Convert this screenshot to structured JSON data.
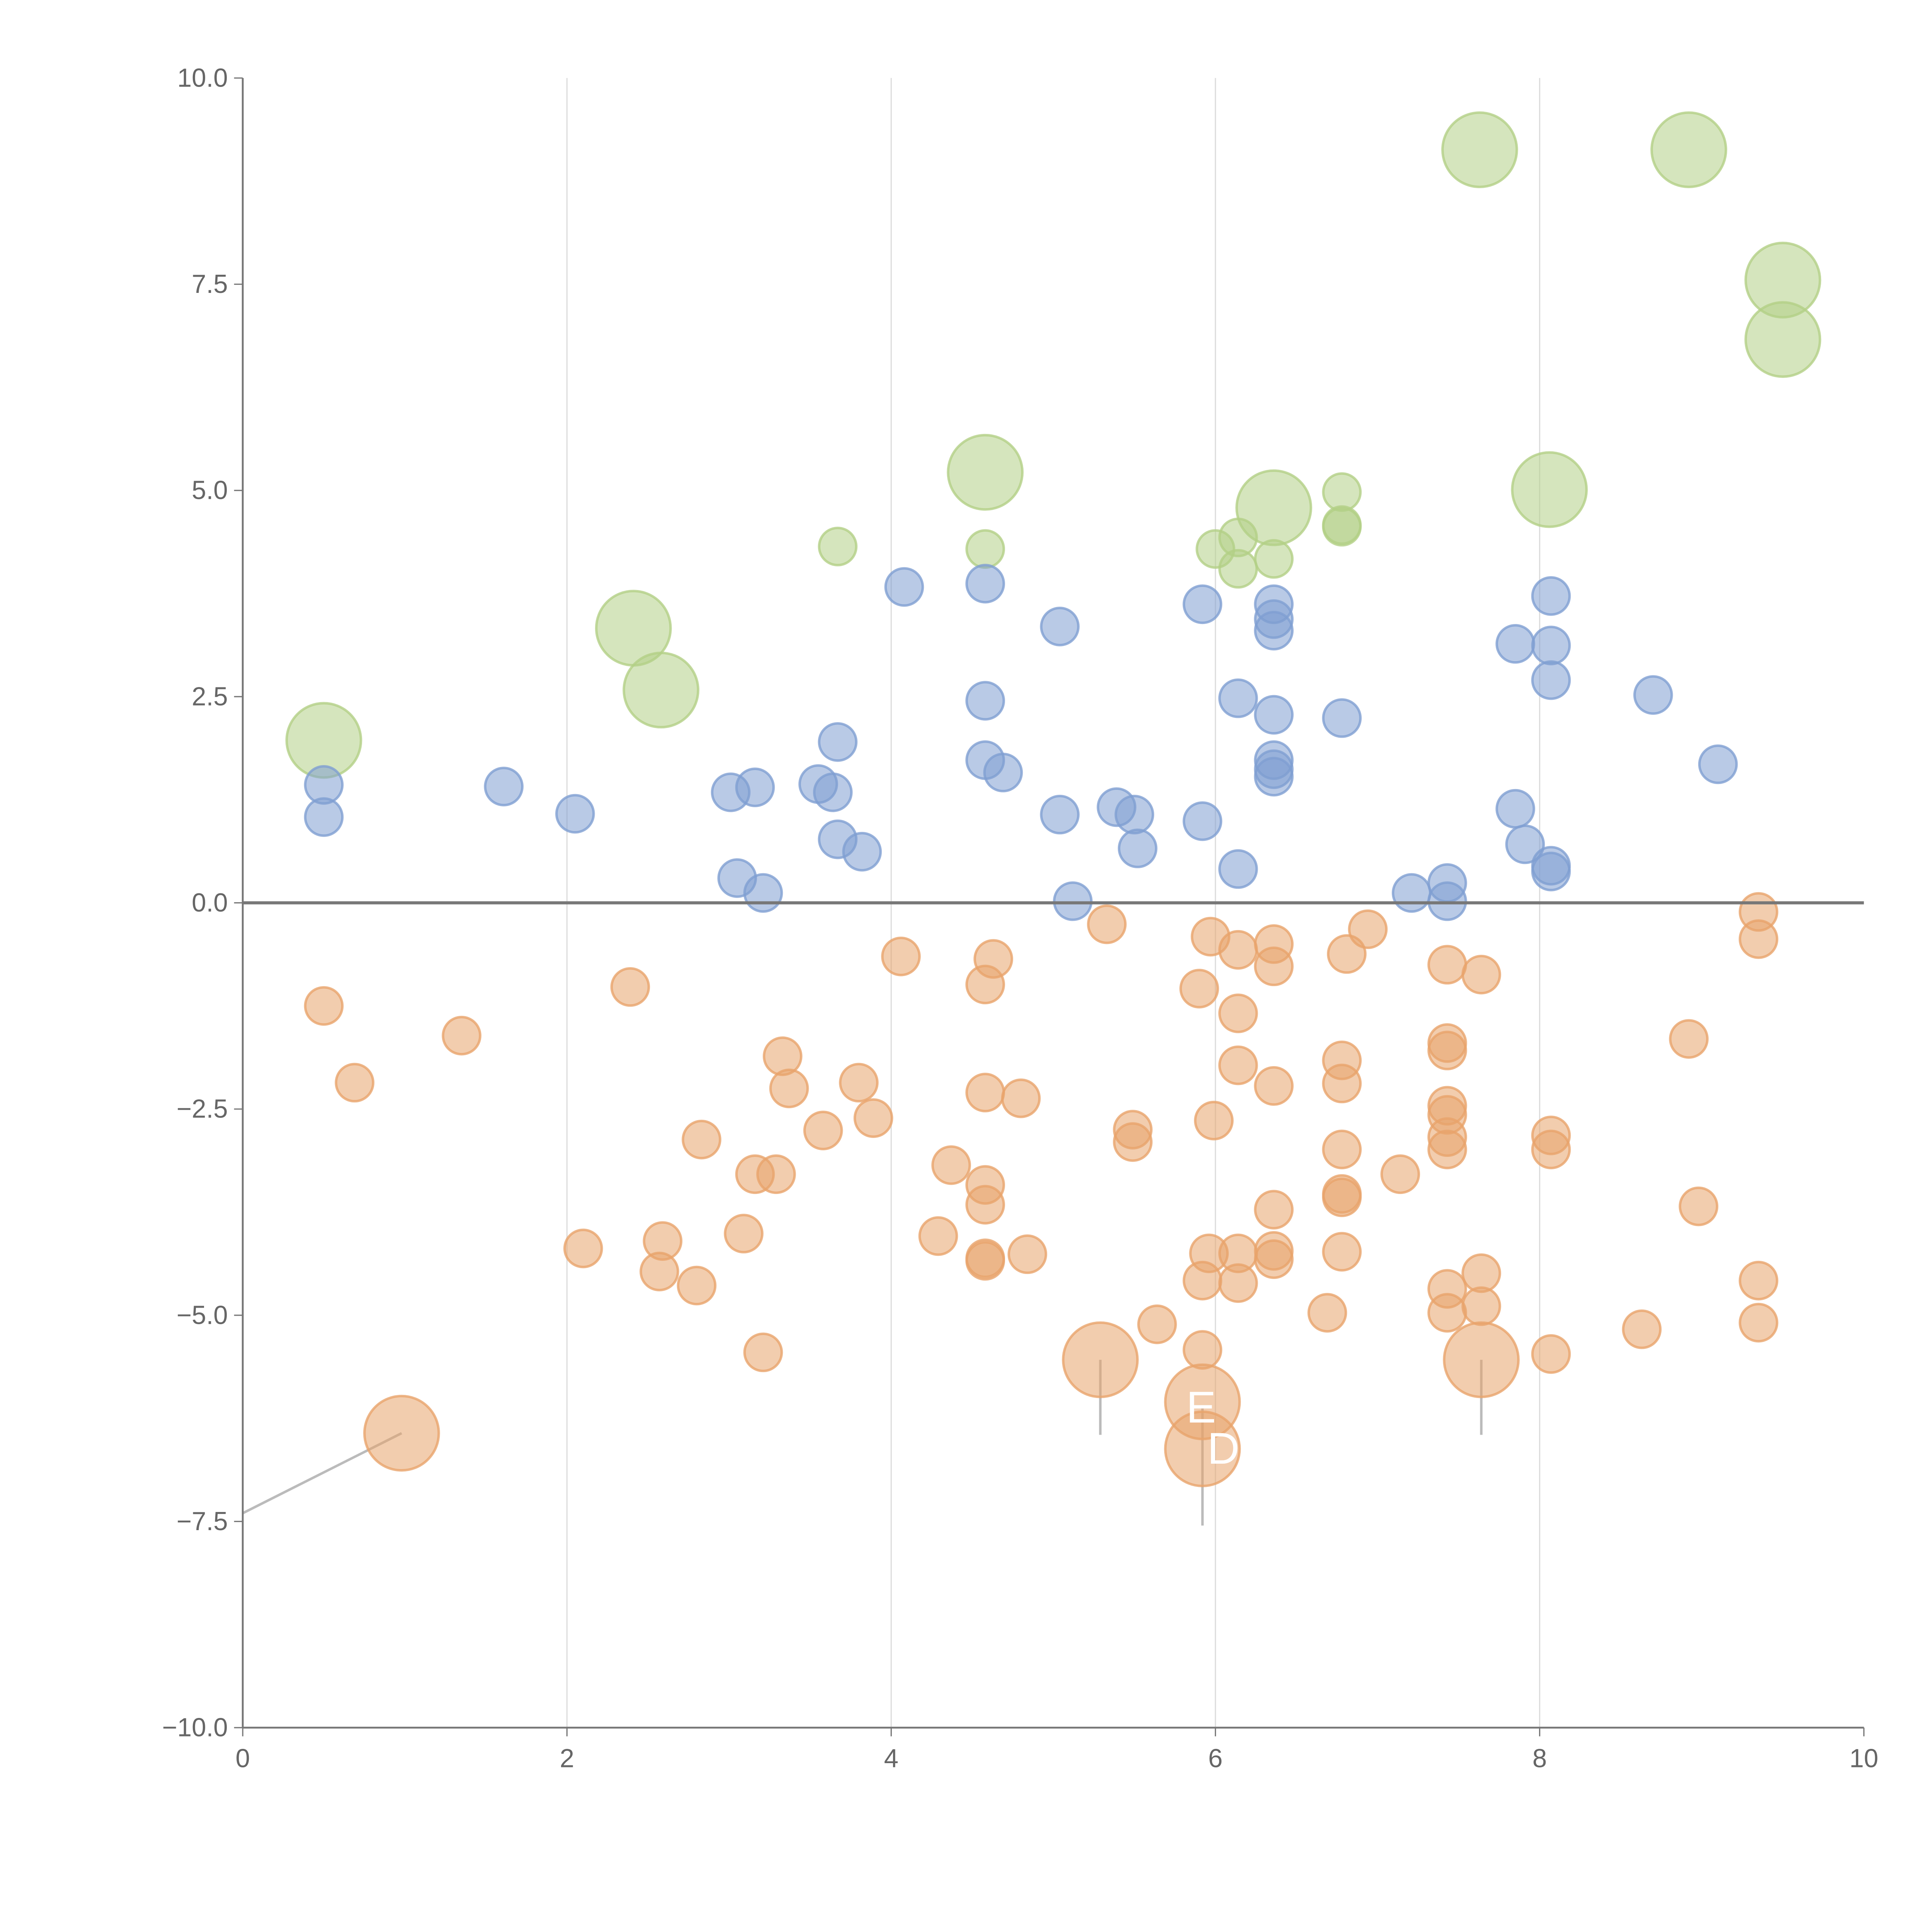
{
  "chart_data": {
    "type": "scatter",
    "title": "",
    "xlabel": "",
    "ylabel": "",
    "xlim": [
      0,
      10
    ],
    "ylim": [
      -10,
      10
    ],
    "xticks": [
      "0",
      "2",
      "4",
      "6",
      "8",
      "10"
    ],
    "yticks": [
      "−10.0",
      "−7.5",
      "−5.0",
      "−2.5",
      "0.0",
      "2.5",
      "5.0",
      "7.5",
      "10.0"
    ],
    "grid": "vertical",
    "series": [
      {
        "name": "green",
        "color": "#b3cf86",
        "points": [
          [
            7.63,
            9.13,
            4
          ],
          [
            8.92,
            9.13,
            4
          ],
          [
            9.5,
            7.55,
            4
          ],
          [
            9.5,
            6.83,
            4
          ],
          [
            4.58,
            5.22,
            4
          ],
          [
            6.36,
            4.79,
            4
          ],
          [
            8.06,
            5.01,
            4
          ],
          [
            2.41,
            3.33,
            4
          ],
          [
            2.58,
            2.58,
            4
          ],
          [
            0.5,
            1.97,
            4
          ],
          [
            3.67,
            4.32,
            1
          ],
          [
            4.58,
            4.29,
            1
          ],
          [
            6.0,
            4.29,
            1
          ],
          [
            6.14,
            4.43,
            1
          ],
          [
            6.14,
            4.05,
            1
          ],
          [
            6.36,
            4.17,
            1
          ],
          [
            6.78,
            4.98,
            1
          ],
          [
            6.78,
            4.58,
            1
          ],
          [
            6.78,
            4.56,
            1
          ]
        ]
      },
      {
        "name": "blue",
        "color": "#7f9fd2",
        "points": [
          [
            0.5,
            1.43,
            1
          ],
          [
            0.5,
            1.04,
            1
          ],
          [
            1.61,
            1.41,
            1
          ],
          [
            2.05,
            1.08,
            1
          ],
          [
            3.01,
            1.34,
            1
          ],
          [
            3.16,
            1.4,
            1
          ],
          [
            3.05,
            0.3,
            1
          ],
          [
            3.21,
            0.12,
            1
          ],
          [
            3.55,
            1.44,
            1
          ],
          [
            3.64,
            1.34,
            1
          ],
          [
            3.67,
            1.95,
            1
          ],
          [
            3.67,
            0.77,
            1
          ],
          [
            3.82,
            0.62,
            1
          ],
          [
            4.08,
            3.83,
            1
          ],
          [
            4.58,
            3.87,
            1
          ],
          [
            4.58,
            2.45,
            1
          ],
          [
            4.58,
            1.73,
            1
          ],
          [
            4.69,
            1.58,
            1
          ],
          [
            5.04,
            3.35,
            1
          ],
          [
            5.04,
            1.07,
            1
          ],
          [
            5.12,
            0.02,
            1
          ],
          [
            5.39,
            1.16,
            1
          ],
          [
            5.5,
            1.07,
            1
          ],
          [
            5.52,
            0.66,
            1
          ],
          [
            5.92,
            3.62,
            1
          ],
          [
            5.92,
            0.99,
            1
          ],
          [
            6.14,
            2.48,
            1
          ],
          [
            6.14,
            0.41,
            1
          ],
          [
            6.36,
            3.62,
            1
          ],
          [
            6.36,
            3.44,
            1
          ],
          [
            6.36,
            3.3,
            1
          ],
          [
            6.36,
            2.28,
            1
          ],
          [
            6.36,
            1.73,
            1
          ],
          [
            6.36,
            1.62,
            1
          ],
          [
            6.36,
            1.53,
            1
          ],
          [
            6.78,
            2.24,
            1
          ],
          [
            7.21,
            0.12,
            1
          ],
          [
            7.43,
            0.24,
            1
          ],
          [
            7.43,
            0.02,
            1
          ],
          [
            7.85,
            3.14,
            1
          ],
          [
            7.85,
            1.14,
            1
          ],
          [
            7.91,
            0.71,
            1
          ],
          [
            8.07,
            3.72,
            1
          ],
          [
            8.07,
            3.12,
            1
          ],
          [
            8.07,
            2.7,
            1
          ],
          [
            8.07,
            0.45,
            1
          ],
          [
            8.07,
            0.38,
            1
          ],
          [
            8.7,
            2.52,
            1
          ],
          [
            9.1,
            1.68,
            1
          ]
        ]
      },
      {
        "name": "orange",
        "color": "#e8a46c",
        "points": [
          [
            0.98,
            -6.43,
            4
          ],
          [
            5.29,
            -5.54,
            4
          ],
          [
            5.92,
            -6.05,
            4
          ],
          [
            5.92,
            -6.62,
            4
          ],
          [
            7.64,
            -5.54,
            4
          ],
          [
            0.5,
            -1.25,
            1
          ],
          [
            0.69,
            -2.18,
            1
          ],
          [
            1.35,
            -1.61,
            1
          ],
          [
            2.39,
            -1.02,
            1
          ],
          [
            2.1,
            -4.19,
            1
          ],
          [
            2.57,
            -4.47,
            1
          ],
          [
            2.59,
            -4.1,
            1
          ],
          [
            2.83,
            -2.87,
            1
          ],
          [
            2.8,
            -4.64,
            1
          ],
          [
            3.09,
            -4.01,
            1
          ],
          [
            3.16,
            -3.29,
            1
          ],
          [
            3.29,
            -3.29,
            1
          ],
          [
            3.33,
            -1.86,
            1
          ],
          [
            3.37,
            -2.25,
            1
          ],
          [
            3.21,
            -5.45,
            1
          ],
          [
            3.58,
            -2.76,
            1
          ],
          [
            3.8,
            -2.18,
            1
          ],
          [
            3.89,
            -2.61,
            1
          ],
          [
            4.06,
            -0.65,
            1
          ],
          [
            4.29,
            -4.04,
            1
          ],
          [
            4.37,
            -3.18,
            1
          ],
          [
            4.58,
            -0.99,
            1
          ],
          [
            4.63,
            -0.68,
            1
          ],
          [
            4.58,
            -2.3,
            1
          ],
          [
            4.8,
            -2.37,
            1
          ],
          [
            4.58,
            -3.42,
            1
          ],
          [
            4.58,
            -3.66,
            1
          ],
          [
            4.58,
            -4.31,
            1
          ],
          [
            4.58,
            -4.34,
            1
          ],
          [
            4.84,
            -4.26,
            1
          ],
          [
            5.33,
            -0.26,
            1
          ],
          [
            5.49,
            -2.75,
            1
          ],
          [
            5.49,
            -2.9,
            1
          ],
          [
            5.64,
            -5.11,
            1
          ],
          [
            5.97,
            -0.41,
            1
          ],
          [
            5.9,
            -1.04,
            1
          ],
          [
            5.99,
            -2.64,
            1
          ],
          [
            6.14,
            -0.57,
            1
          ],
          [
            6.14,
            -1.34,
            1
          ],
          [
            6.14,
            -1.97,
            1
          ],
          [
            6.36,
            -0.5,
            1
          ],
          [
            6.36,
            -0.77,
            1
          ],
          [
            6.36,
            -2.22,
            1
          ],
          [
            5.96,
            -4.25,
            1
          ],
          [
            6.14,
            -4.25,
            1
          ],
          [
            5.92,
            -4.58,
            1
          ],
          [
            6.14,
            -4.61,
            1
          ],
          [
            5.92,
            -5.42,
            1
          ],
          [
            6.36,
            -3.72,
            1
          ],
          [
            6.36,
            -4.22,
            1
          ],
          [
            6.36,
            -4.32,
            1
          ],
          [
            6.81,
            -0.62,
            1
          ],
          [
            6.94,
            -0.32,
            1
          ],
          [
            6.78,
            -1.91,
            1
          ],
          [
            6.78,
            -2.19,
            1
          ],
          [
            6.78,
            -2.99,
            1
          ],
          [
            6.78,
            -3.53,
            1
          ],
          [
            6.78,
            -3.57,
            1
          ],
          [
            6.78,
            -4.23,
            1
          ],
          [
            6.69,
            -4.97,
            1
          ],
          [
            7.14,
            -3.29,
            1
          ],
          [
            7.43,
            -0.75,
            1
          ],
          [
            7.43,
            -1.7,
            1
          ],
          [
            7.43,
            -1.79,
            1
          ],
          [
            7.43,
            -2.46,
            1
          ],
          [
            7.43,
            -2.57,
            1
          ],
          [
            7.43,
            -2.84,
            1
          ],
          [
            7.43,
            -2.99,
            1
          ],
          [
            7.43,
            -4.68,
            1
          ],
          [
            7.43,
            -4.97,
            1
          ],
          [
            7.64,
            -0.87,
            1
          ],
          [
            7.64,
            -4.49,
            1
          ],
          [
            7.64,
            -4.89,
            1
          ],
          [
            8.07,
            -2.82,
            1
          ],
          [
            8.07,
            -2.99,
            1
          ],
          [
            8.07,
            -5.47,
            1
          ],
          [
            8.63,
            -5.17,
            1
          ],
          [
            8.92,
            -1.65,
            1
          ],
          [
            8.98,
            -3.68,
            1
          ],
          [
            9.35,
            -0.11,
            1
          ],
          [
            9.35,
            -0.44,
            1
          ],
          [
            9.35,
            -4.58,
            1
          ],
          [
            9.35,
            -5.09,
            1
          ]
        ]
      }
    ],
    "leaders": [
      [
        0.98,
        -6.43,
        0,
        -7.4
      ],
      [
        5.29,
        -5.54,
        5.29,
        -6.45
      ],
      [
        5.92,
        -6.1,
        5.92,
        -7.55
      ],
      [
        7.64,
        -5.54,
        7.64,
        -6.45
      ]
    ],
    "annotations": [
      {
        "text": "E",
        "x": 5.82,
        "y": -6.3
      },
      {
        "text": "D",
        "x": 5.95,
        "y": -6.8
      }
    ]
  }
}
